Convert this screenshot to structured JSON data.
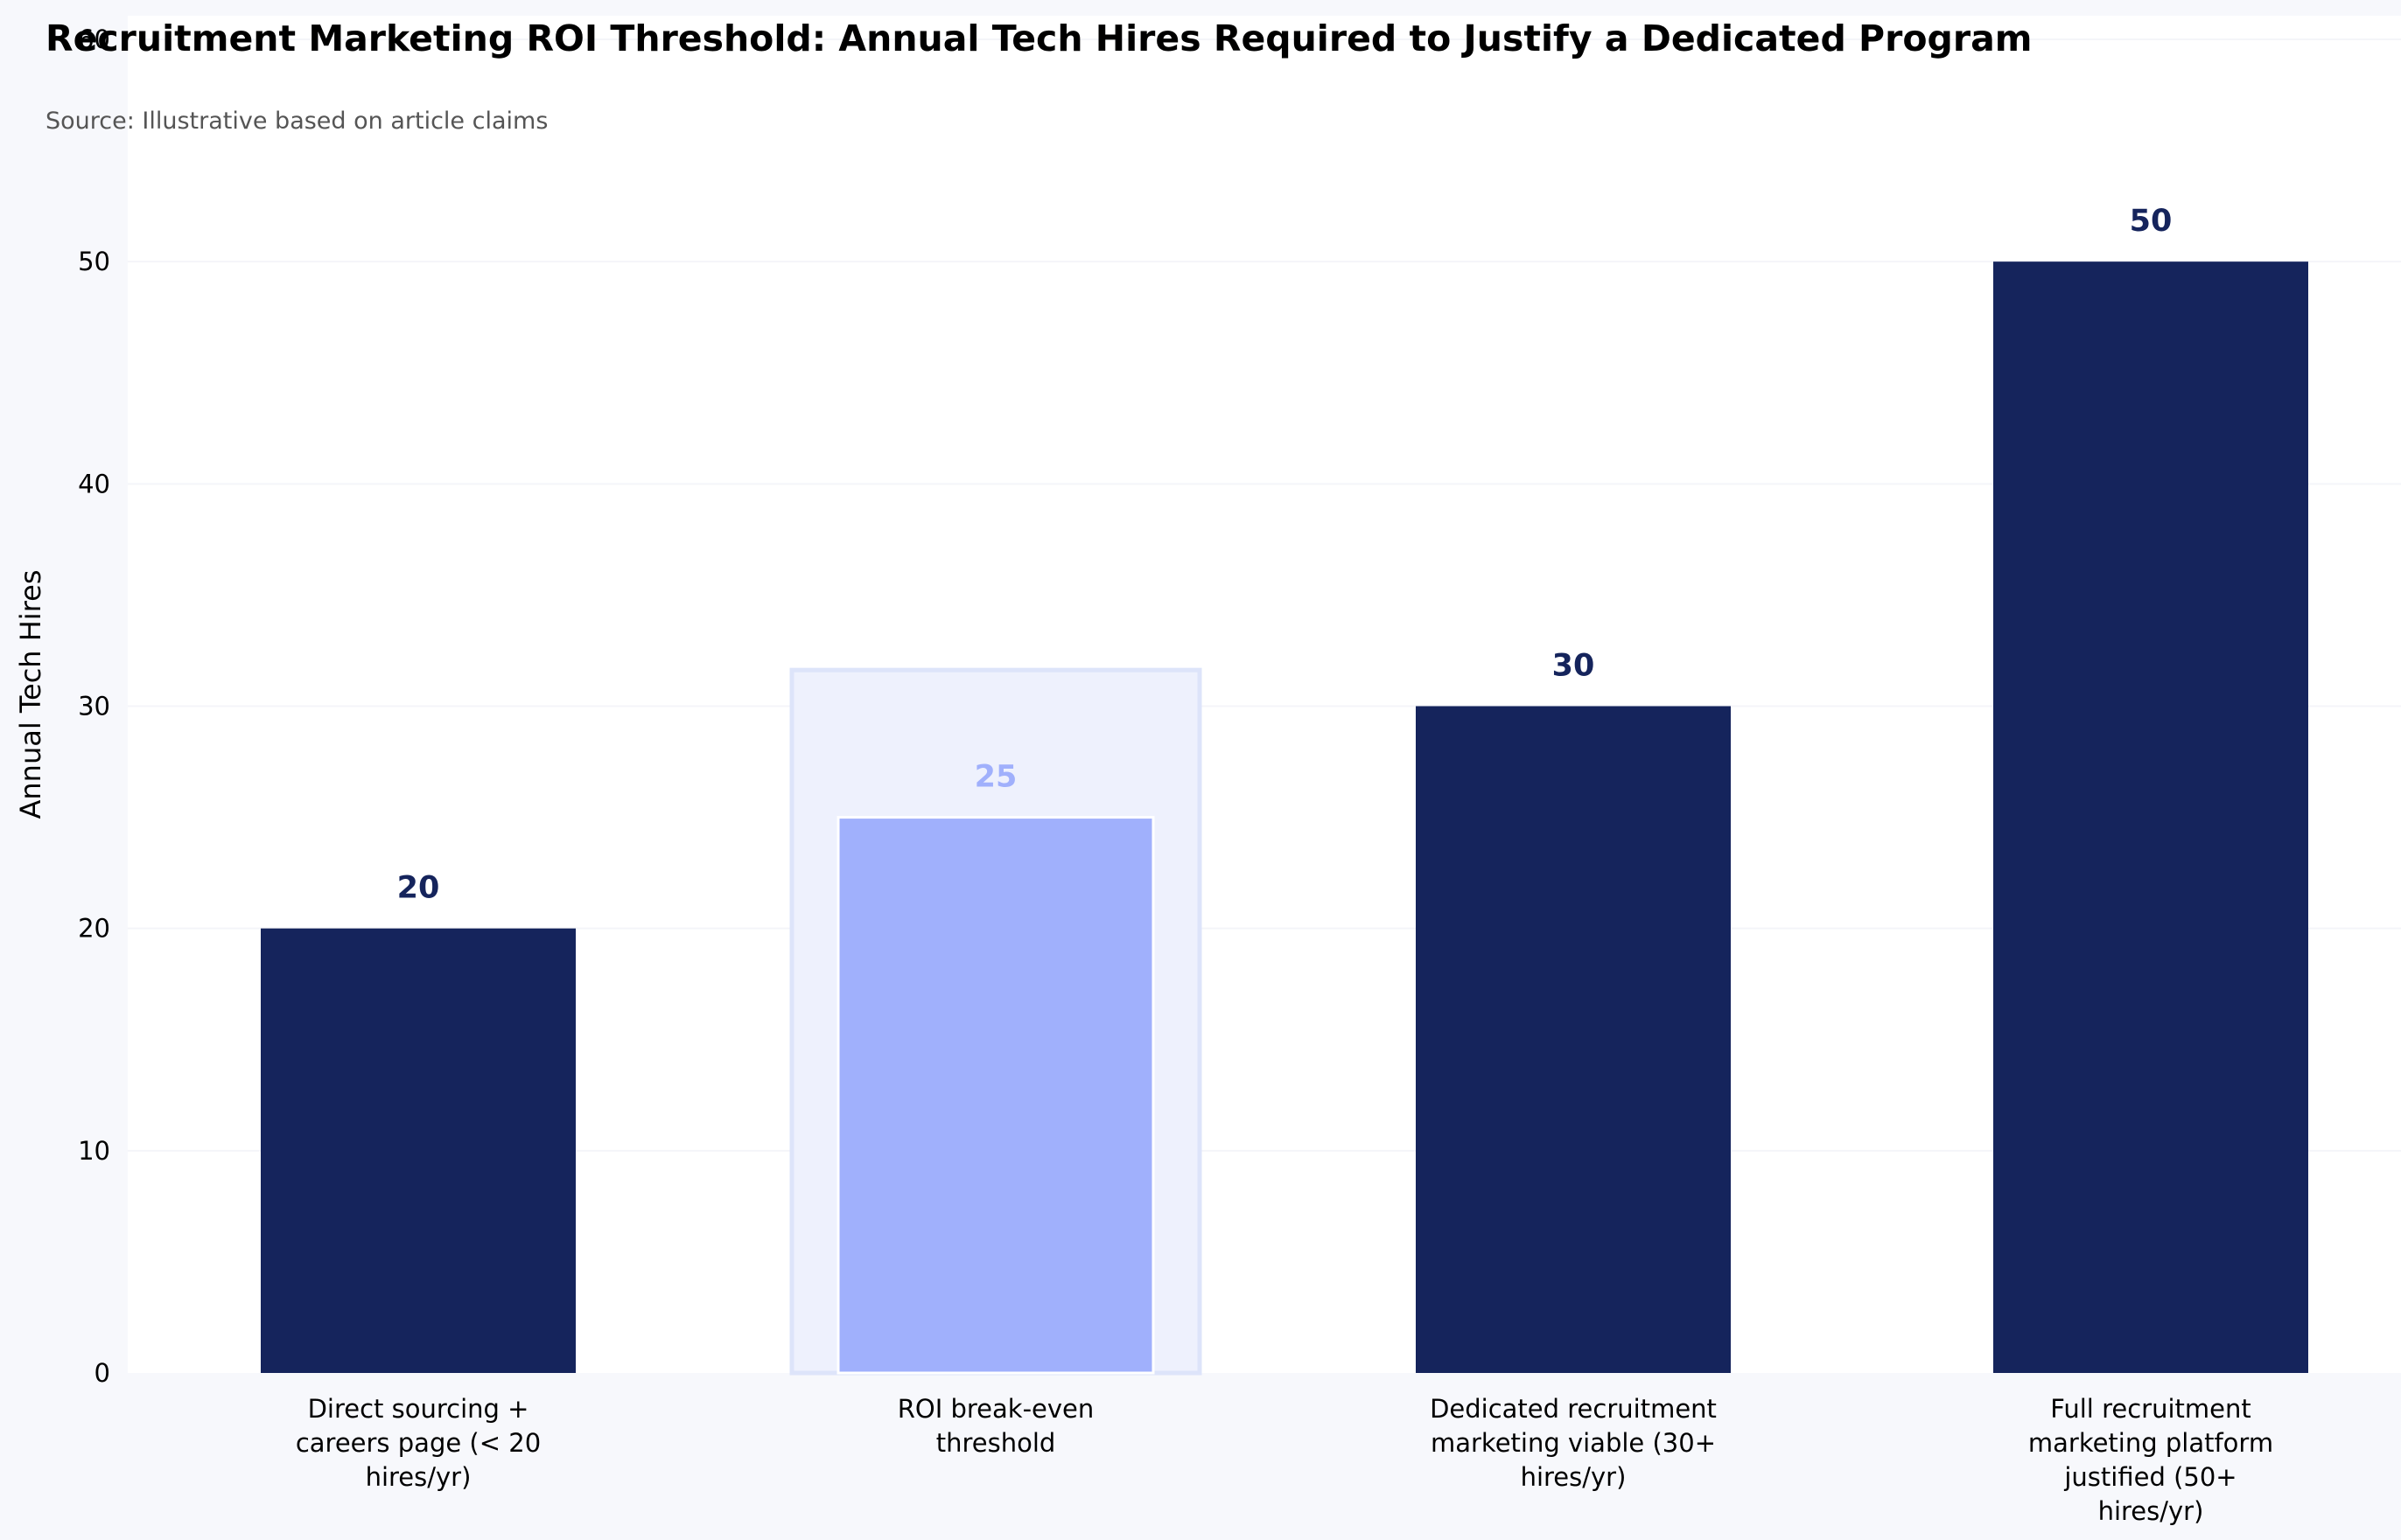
{
  "chart_data": {
    "type": "bar",
    "title": "Recruitment Marketing ROI Threshold: Annual Tech Hires Required to Justify a Dedicated Program",
    "subtitle": "Source: Illustrative based on article claims",
    "xlabel": "",
    "ylabel": "Annual Tech Hires",
    "ylim": [
      0,
      60
    ],
    "yticks": [
      0,
      10,
      20,
      30,
      40,
      50,
      60
    ],
    "grid": "horizontal",
    "legend": "none",
    "categories": [
      [
        "Direct sourcing +",
        "careers page (< 20",
        "hires/yr)"
      ],
      [
        "ROI break-even",
        "threshold"
      ],
      [
        "Dedicated recruitment",
        "marketing viable (30+",
        "hires/yr)"
      ],
      [
        "Full recruitment",
        "marketing platform",
        "justified (50+",
        "hires/yr)"
      ]
    ],
    "values": [
      20,
      25,
      30,
      50
    ],
    "highlight_index": 1,
    "colors": {
      "bar": "#15245c",
      "highlight_bar": "#a0b0fc",
      "highlight_band": "#eef1fd",
      "highlight_band_border": "#dde4fa",
      "plot_background": "#ffffff",
      "page_background": "#f7f8fc",
      "grid": "#f4f5f9"
    }
  }
}
